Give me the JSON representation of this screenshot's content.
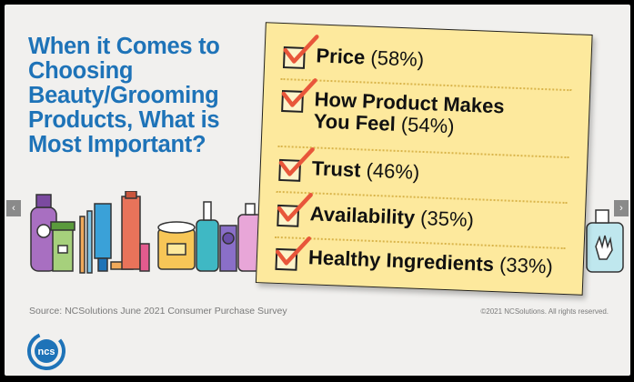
{
  "title": "When it Comes to Choosing Beauty/Grooming Products, What is Most Important?",
  "chart_data": {
    "type": "table",
    "title": "When it Comes to Choosing Beauty/Grooming Products, What is Most Important?",
    "categories": [
      "Price",
      "How Product Makes You Feel",
      "Trust",
      "Availability",
      "Healthy Ingredients"
    ],
    "values": [
      58,
      54,
      46,
      35,
      33
    ],
    "unit": "%",
    "items": [
      {
        "label_line1": "Price",
        "label_line2": "",
        "pct": "(58%)"
      },
      {
        "label_line1": "How Product Makes",
        "label_line2": "You Feel",
        "pct": "(54%)"
      },
      {
        "label_line1": "Trust",
        "label_line2": "",
        "pct": "(46%)"
      },
      {
        "label_line1": "Availability",
        "label_line2": "",
        "pct": "(35%)"
      },
      {
        "label_line1": "Healthy Ingredients",
        "label_line2": "",
        "pct": "(33%)"
      }
    ]
  },
  "source": "Source: NCSolutions June 2021 Consumer Purchase Survey",
  "copyright": "©2021 NCSolutions. All rights reserved.",
  "logo_text": "ncs",
  "nav": {
    "prev": "‹",
    "next": "›"
  },
  "colors": {
    "title": "#1e73b8",
    "note": "#fde99d",
    "check": "#e8563a",
    "logo": "#1e73b8"
  },
  "icons": [
    "checkmark-icon",
    "chevron-left-icon",
    "chevron-right-icon",
    "beauty-products-illustration",
    "hand-sanitizer-illustration"
  ]
}
